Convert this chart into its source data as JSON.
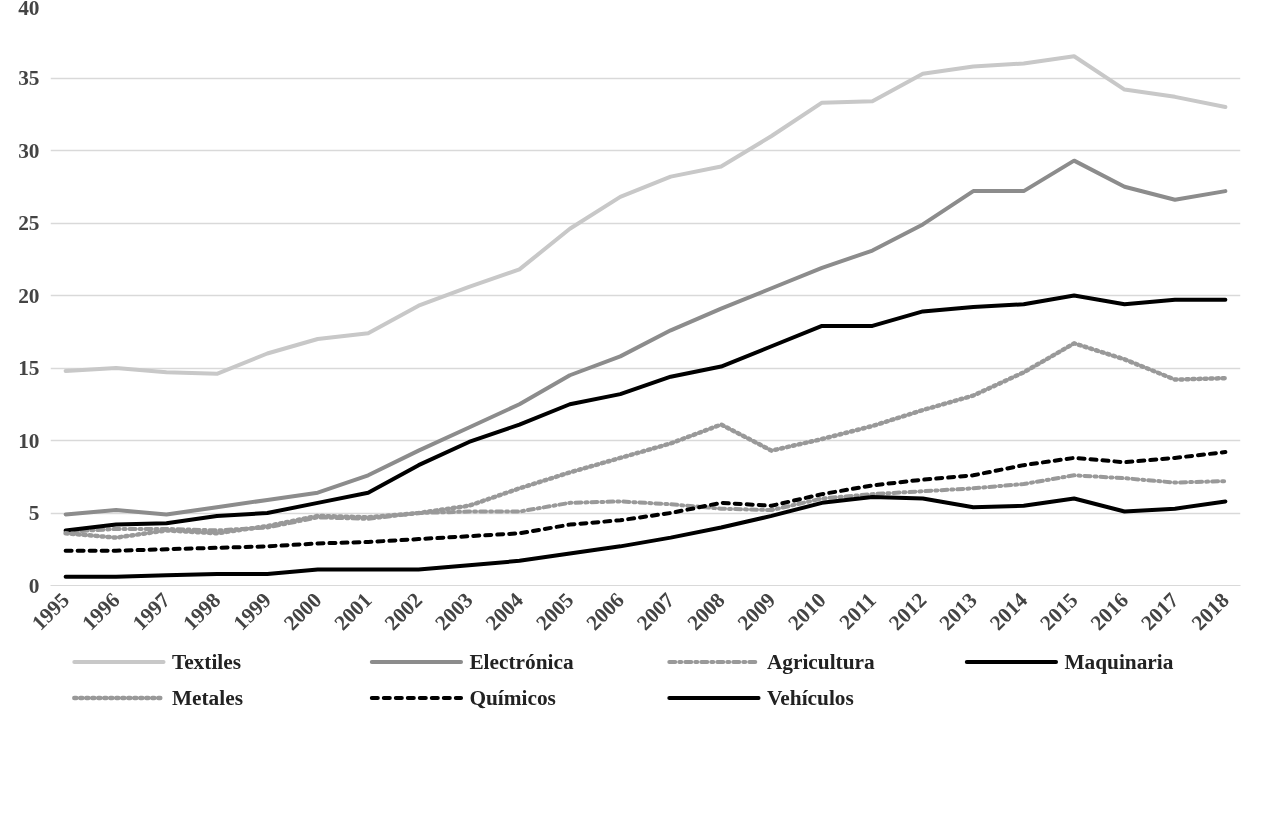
{
  "chart_data": {
    "type": "line",
    "categories": [
      "1995",
      "1996",
      "1997",
      "1998",
      "1999",
      "2000",
      "2001",
      "2002",
      "2003",
      "2004",
      "2005",
      "2006",
      "2007",
      "2008",
      "2009",
      "2010",
      "2011",
      "2012",
      "2013",
      "2014",
      "2015",
      "2016",
      "2017",
      "2018"
    ],
    "ylim": [
      0,
      40
    ],
    "yticks": [
      0,
      5,
      10,
      15,
      20,
      25,
      30,
      35,
      40
    ],
    "grid": "y",
    "legend": "bottom",
    "marker": "none",
    "series": [
      {
        "name": "Textiles",
        "color": "#c8c8c8",
        "line_style": "solid",
        "values": [
          14.8,
          15.0,
          14.7,
          14.6,
          16.0,
          17.0,
          17.4,
          19.3,
          20.6,
          21.8,
          24.6,
          26.8,
          28.2,
          28.9,
          31.0,
          33.3,
          33.4,
          35.3,
          35.8,
          36.0,
          36.5,
          34.2,
          33.7,
          33.0
        ]
      },
      {
        "name": "Electrónica",
        "color": "#8c8c8c",
        "line_style": "solid",
        "values": [
          4.9,
          5.2,
          4.9,
          5.4,
          5.9,
          6.4,
          7.6,
          9.3,
          10.9,
          12.5,
          14.5,
          15.8,
          17.6,
          19.1,
          20.5,
          21.9,
          23.1,
          24.9,
          27.2,
          27.2,
          29.3,
          27.5,
          26.6,
          27.2
        ]
      },
      {
        "name": "Agricultura",
        "color": "#999999",
        "line_style": "dashdot",
        "values": [
          3.7,
          3.9,
          3.9,
          3.8,
          4.0,
          4.7,
          4.6,
          5.0,
          5.1,
          5.1,
          5.7,
          5.8,
          5.6,
          5.3,
          5.2,
          6.0,
          6.3,
          6.5,
          6.7,
          7.0,
          7.6,
          7.4,
          7.1,
          7.2
        ]
      },
      {
        "name": "Maquinaria",
        "color": "#000000",
        "line_style": "solid",
        "values": [
          3.8,
          4.2,
          4.3,
          4.8,
          5.0,
          5.7,
          6.4,
          8.3,
          9.9,
          11.1,
          12.5,
          13.2,
          14.4,
          15.1,
          16.5,
          17.9,
          17.9,
          18.9,
          19.2,
          19.4,
          20.0,
          19.4,
          19.7,
          19.7
        ]
      },
      {
        "name": "Metales",
        "color": "#999999",
        "line_style": "dotted",
        "values": [
          3.6,
          3.3,
          3.8,
          3.6,
          4.1,
          4.8,
          4.7,
          5.0,
          5.5,
          6.7,
          7.8,
          8.8,
          9.8,
          11.1,
          9.3,
          10.1,
          11.0,
          12.1,
          13.1,
          14.7,
          16.7,
          15.6,
          14.2,
          14.3
        ]
      },
      {
        "name": "Químicos",
        "color": "#000000",
        "line_style": "dashed",
        "values": [
          2.4,
          2.4,
          2.5,
          2.6,
          2.7,
          2.9,
          3.0,
          3.2,
          3.4,
          3.6,
          4.2,
          4.5,
          5.0,
          5.7,
          5.5,
          6.3,
          6.9,
          7.3,
          7.6,
          8.3,
          8.8,
          8.5,
          8.8,
          9.2
        ]
      },
      {
        "name": "Vehículos",
        "color": "#000000",
        "line_style": "solid",
        "values": [
          0.6,
          0.6,
          0.7,
          0.8,
          0.8,
          1.1,
          1.1,
          1.1,
          1.4,
          1.7,
          2.2,
          2.7,
          3.3,
          4.0,
          4.8,
          5.7,
          6.1,
          6.0,
          5.4,
          5.5,
          6.0,
          5.1,
          5.3,
          5.8
        ]
      }
    ]
  }
}
